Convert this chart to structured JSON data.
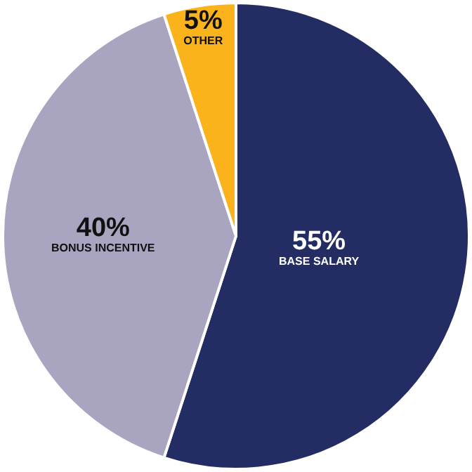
{
  "chart_data": {
    "type": "pie",
    "categories": [
      "BASE SALARY",
      "BONUS INCENTIVE",
      "OTHER"
    ],
    "values": [
      55,
      40,
      5
    ],
    "colors": [
      "#232d63",
      "#a9a5c0",
      "#fbb31b"
    ],
    "value_labels": [
      "55%",
      "40%",
      "5%"
    ]
  }
}
